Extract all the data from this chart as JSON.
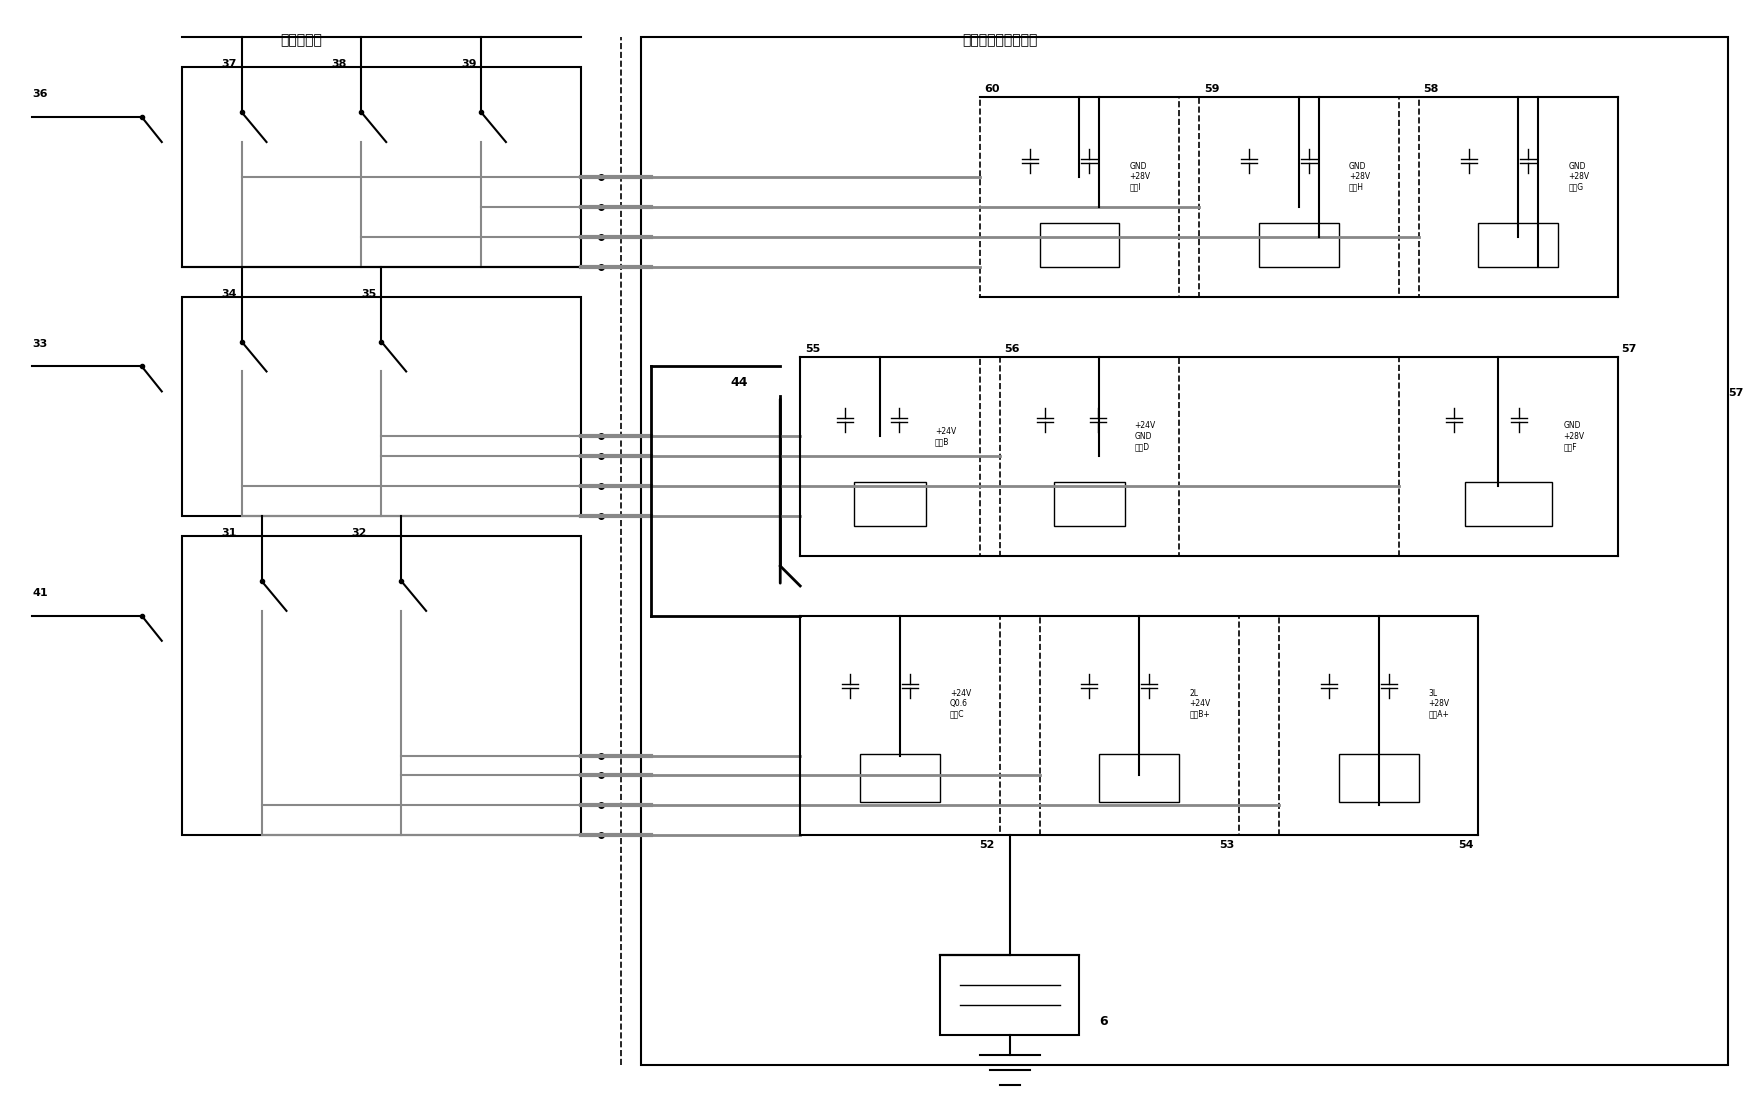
{
  "title": "",
  "bg_color": "#ffffff",
  "fig_width": 17.53,
  "fig_height": 11.16,
  "dpi": 100,
  "labels": {
    "manual_control": "手动控制盒",
    "ground_control": "地面控制箱（部分）",
    "n36": "36",
    "n37": "37",
    "n38": "38",
    "n39": "39",
    "n33": "33",
    "n34": "34",
    "n35": "35",
    "n41": "41",
    "n31": "31",
    "n32": "32",
    "n44": "44",
    "n55": "55",
    "n56": "56",
    "n57": "57",
    "n58": "58",
    "n59": "59",
    "n60": "60",
    "n52": "52",
    "n53": "53",
    "n54": "54",
    "n6": "6",
    "box60_text": "GND\n+28V\n输出I",
    "box59_text": "GND\n+28V\n输出H",
    "box58_text": "GND\n+28V\n输出G",
    "box55_text": "+24V\n输出B",
    "box56_text": "+24V\nGND\n输出D",
    "box57_text": "GND\n+28V\n输出F",
    "box52_text": "+24V\nQ0.6\n输出C",
    "box53_text": "2L\n+24V\n输出B+",
    "box54_text": "3L\n+28V\n输出A+"
  },
  "colors": {
    "black": "#000000",
    "gray": "#808080",
    "dark_gray": "#404040",
    "white": "#ffffff",
    "line_black": "#1a1a1a",
    "line_gray": "#888888"
  }
}
